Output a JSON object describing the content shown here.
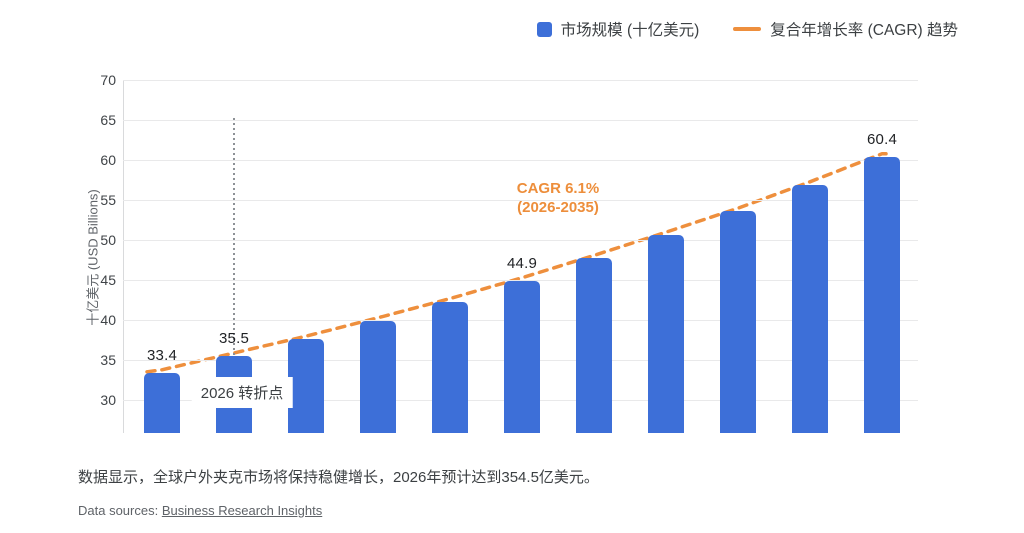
{
  "legend": {
    "market_size_label": "市场规模 (十亿美元)",
    "cagr_label": "复合年增长率 (CAGR) 趋势"
  },
  "colors": {
    "bar_blue": "#3D6FD8",
    "trend_orange": "#EE8F3D",
    "annotation_orange": "#ED8E3B",
    "gridline": "#e9e9ea",
    "text_dark": "#3c4043",
    "text_muted": "#5f6368"
  },
  "chart_data": {
    "type": "bar",
    "title": "",
    "xlabel": "",
    "ylabel": "十亿美元 (USD Billions)",
    "x_axis_labels_visible": false,
    "y_ticks": [
      30,
      35,
      40,
      45,
      50,
      55,
      60,
      65,
      70
    ],
    "ylim": [
      26,
      70
    ],
    "grid": true,
    "legend_position": "top-right",
    "values": [
      33.4,
      35.5,
      37.6,
      39.9,
      42.3,
      44.9,
      47.7,
      50.6,
      53.6,
      56.9,
      60.4
    ],
    "value_labels": {
      "0": "33.4",
      "1": "35.5",
      "5": "44.9",
      "10": "60.4"
    },
    "series": [
      {
        "name": "市场规模 (十亿美元)",
        "type": "bar"
      },
      {
        "name": "复合年增长率 (CAGR) 趋势",
        "type": "dashed-line-through-bar-tops"
      }
    ],
    "annotations": {
      "cagr_line1": "CAGR 6.1%",
      "cagr_line2": "(2026-2035)",
      "turning_point": "2026 转折点"
    }
  },
  "caption": "数据显示，全球户外夹克市场将保持稳健增长，2026年预计达到354.5亿美元。",
  "sources": {
    "prefix": "Data sources: ",
    "link_text": "Business Research Insights"
  }
}
